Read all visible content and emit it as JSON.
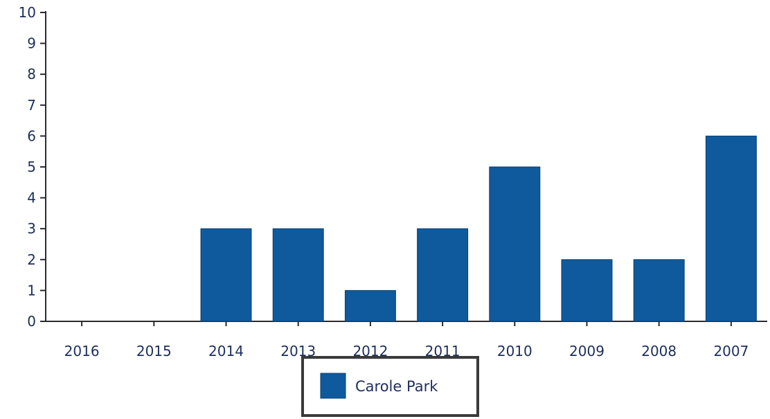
{
  "chart_data": {
    "type": "bar",
    "title": "",
    "xlabel": "",
    "ylabel": "",
    "categories": [
      "2016",
      "2015",
      "2014",
      "2013",
      "2012",
      "2011",
      "2010",
      "2009",
      "2008",
      "2007"
    ],
    "series": [
      {
        "name": "Carole Park",
        "values": [
          0,
          0,
          3,
          3,
          1,
          3,
          5,
          2,
          2,
          6
        ],
        "color": "#0f5a9c"
      }
    ],
    "ylim": [
      0,
      10
    ],
    "yticks": [
      "0",
      "1",
      "2",
      "3",
      "4",
      "5",
      "6",
      "7",
      "8",
      "9",
      "10"
    ],
    "grid": false,
    "legend": {
      "position": "bottom-center",
      "label": "Carole Park"
    },
    "colors": {
      "bar": "#0f5a9c",
      "bar_edge": "#0a3f70",
      "axis": "#2b2b2b",
      "text": "#1c2e5c",
      "legend_border": "#3a3a3a"
    }
  }
}
